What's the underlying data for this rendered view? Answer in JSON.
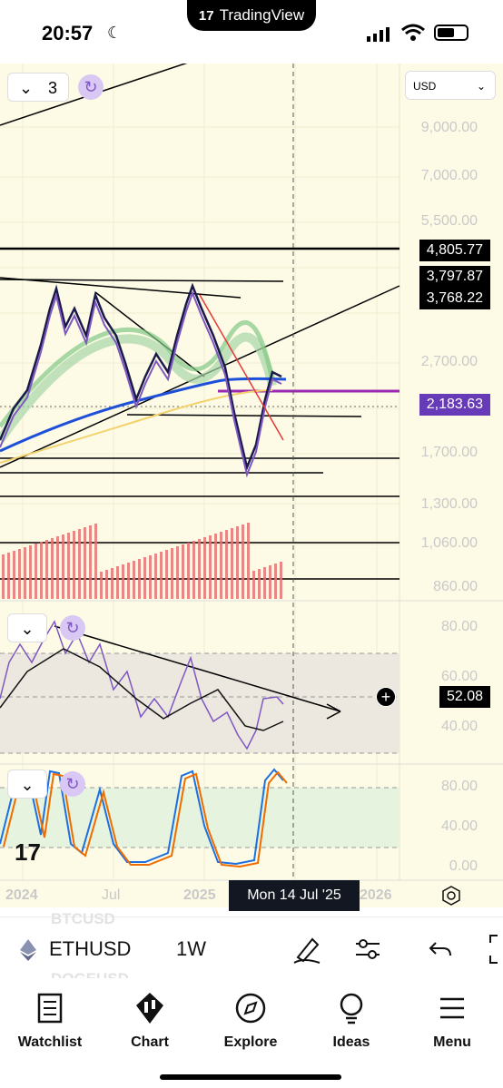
{
  "status": {
    "time": "20:57",
    "app_pill": "TradingView"
  },
  "chart": {
    "currency": "USD",
    "indicator_count": "3",
    "price_axis": [
      "9,000.00",
      "7,000.00",
      "5,500.00",
      "3,800.00",
      "2,700.00",
      "1,700.00",
      "1,300.00",
      "1,060.00",
      "860.00"
    ],
    "price_tags": [
      {
        "value": "4,805.77",
        "color": "#000000"
      },
      {
        "value": "3,797.87",
        "color": "#000000"
      },
      {
        "value": "3,768.22",
        "color": "#000000"
      },
      {
        "value": "2,183.63",
        "color": "#673ab7"
      }
    ],
    "rsi_axis": [
      "80.00",
      "60.00",
      "40.00"
    ],
    "rsi_value": "52.08",
    "stoch_axis": [
      "80.00",
      "40.00",
      "0.00"
    ],
    "time_axis": [
      "2024",
      "Jul",
      "2025",
      "2026"
    ],
    "crosshair_date": "Mon 14 Jul '25"
  },
  "symbol_bar": {
    "symbol": "ETHUSD",
    "timeframe": "1W",
    "ghost_above": "BTCUSD",
    "ghost_below": "DOGEUSD"
  },
  "tabs": [
    {
      "label": "Watchlist",
      "icon": "watchlist-icon"
    },
    {
      "label": "Chart",
      "icon": "chart-icon"
    },
    {
      "label": "Explore",
      "icon": "compass-icon"
    },
    {
      "label": "Ideas",
      "icon": "lightbulb-icon"
    },
    {
      "label": "Menu",
      "icon": "hamburger-icon"
    }
  ]
}
